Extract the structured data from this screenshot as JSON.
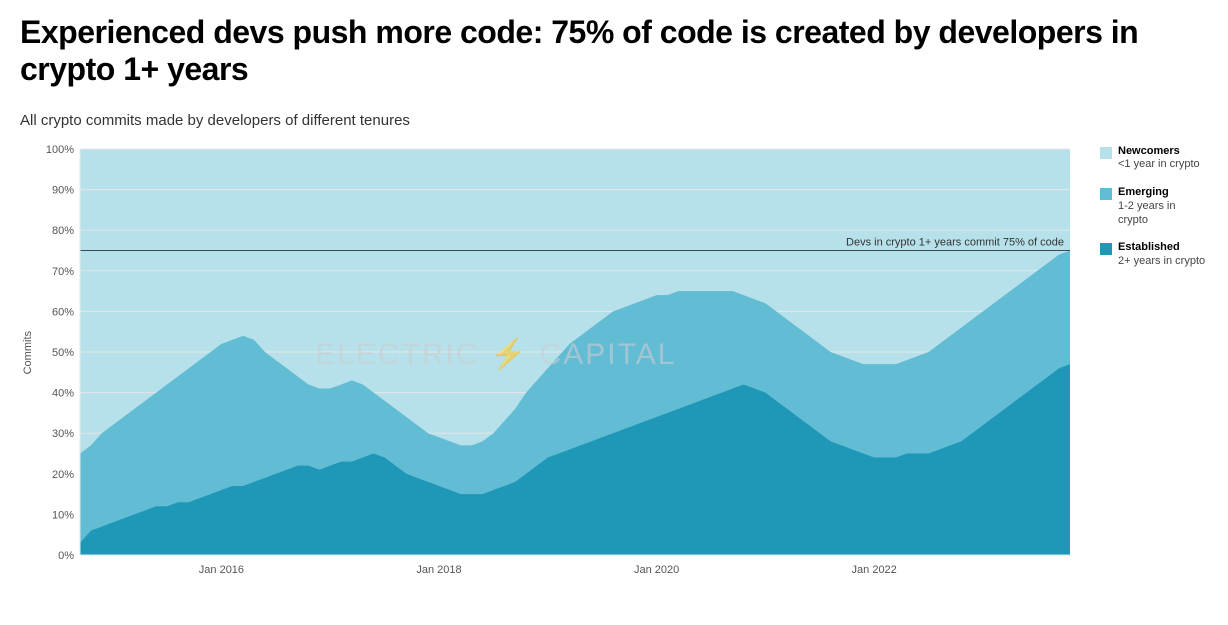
{
  "title": "Experienced devs push more code: 75% of code is created by developers in crypto 1+ years",
  "subtitle": "All crypto commits made by developers of different tenures",
  "watermark": "ELECTRIC ⚡ CAPITAL",
  "chart": {
    "type": "stacked-area-100",
    "yaxis_label": "Commits",
    "ylim": [
      0,
      100
    ],
    "ytick_step": 10,
    "ytick_suffix": "%",
    "background_fill": "#ffffff",
    "grid_color": "#e6e6e6",
    "top_fill_to_100_color": "#b7e1ea",
    "reference_line": {
      "value": 75,
      "label": "Devs in crypto 1+ years commit 75% of code",
      "color": "#3a4a52"
    },
    "x_start": 2014.7,
    "x_end": 2023.8,
    "xticks": [
      {
        "value": 2016.0,
        "label": "Jan 2016"
      },
      {
        "value": 2018.0,
        "label": "Jan 2018"
      },
      {
        "value": 2020.0,
        "label": "Jan 2020"
      },
      {
        "value": 2022.0,
        "label": "Jan 2022"
      }
    ],
    "legend": [
      {
        "key": "newcomers",
        "name": "Newcomers",
        "desc": "<1 year in crypto",
        "color": "#b7e1ea"
      },
      {
        "key": "emerging",
        "name": "Emerging",
        "desc": "1-2 years in crypto",
        "color": "#62bcd4"
      },
      {
        "key": "established",
        "name": "Established",
        "desc": "2+ years in crypto",
        "color": "#1f98b8"
      }
    ],
    "series": {
      "x": [
        2014.7,
        2014.8,
        2014.9,
        2015.0,
        2015.1,
        2015.2,
        2015.3,
        2015.4,
        2015.5,
        2015.6,
        2015.7,
        2015.8,
        2015.9,
        2016.0,
        2016.1,
        2016.2,
        2016.3,
        2016.4,
        2016.5,
        2016.6,
        2016.7,
        2016.8,
        2016.9,
        2017.0,
        2017.1,
        2017.2,
        2017.3,
        2017.4,
        2017.5,
        2017.6,
        2017.7,
        2017.8,
        2017.9,
        2018.0,
        2018.1,
        2018.2,
        2018.3,
        2018.4,
        2018.5,
        2018.6,
        2018.7,
        2018.8,
        2018.9,
        2019.0,
        2019.1,
        2019.2,
        2019.3,
        2019.4,
        2019.5,
        2019.6,
        2019.7,
        2019.8,
        2019.9,
        2020.0,
        2020.1,
        2020.2,
        2020.3,
        2020.4,
        2020.5,
        2020.6,
        2020.7,
        2020.8,
        2020.9,
        2021.0,
        2021.1,
        2021.2,
        2021.3,
        2021.4,
        2021.5,
        2021.6,
        2021.7,
        2021.8,
        2021.9,
        2022.0,
        2022.1,
        2022.2,
        2022.3,
        2022.4,
        2022.5,
        2022.6,
        2022.7,
        2022.8,
        2022.9,
        2023.0,
        2023.1,
        2023.2,
        2023.3,
        2023.4,
        2023.5,
        2023.6,
        2023.7,
        2023.8
      ],
      "established": [
        3,
        6,
        7,
        8,
        9,
        10,
        11,
        12,
        12,
        13,
        13,
        14,
        15,
        16,
        17,
        17,
        18,
        19,
        20,
        21,
        22,
        22,
        21,
        22,
        23,
        23,
        24,
        25,
        24,
        22,
        20,
        19,
        18,
        17,
        16,
        15,
        15,
        15,
        16,
        17,
        18,
        20,
        22,
        24,
        25,
        26,
        27,
        28,
        29,
        30,
        31,
        32,
        33,
        34,
        35,
        36,
        37,
        38,
        39,
        40,
        41,
        42,
        41,
        40,
        38,
        36,
        34,
        32,
        30,
        28,
        27,
        26,
        25,
        24,
        24,
        24,
        25,
        25,
        25,
        26,
        27,
        28,
        30,
        32,
        34,
        36,
        38,
        40,
        42,
        44,
        46,
        47
      ],
      "emerging_plus_established": [
        25,
        27,
        30,
        32,
        34,
        36,
        38,
        40,
        42,
        44,
        46,
        48,
        50,
        52,
        53,
        54,
        53,
        50,
        48,
        46,
        44,
        42,
        41,
        41,
        42,
        43,
        42,
        40,
        38,
        36,
        34,
        32,
        30,
        29,
        28,
        27,
        27,
        28,
        30,
        33,
        36,
        40,
        43,
        46,
        49,
        52,
        54,
        56,
        58,
        60,
        61,
        62,
        63,
        64,
        64,
        65,
        65,
        65,
        65,
        65,
        65,
        64,
        63,
        62,
        60,
        58,
        56,
        54,
        52,
        50,
        49,
        48,
        47,
        47,
        47,
        47,
        48,
        49,
        50,
        52,
        54,
        56,
        58,
        60,
        62,
        64,
        66,
        68,
        70,
        72,
        74,
        75
      ]
    }
  }
}
